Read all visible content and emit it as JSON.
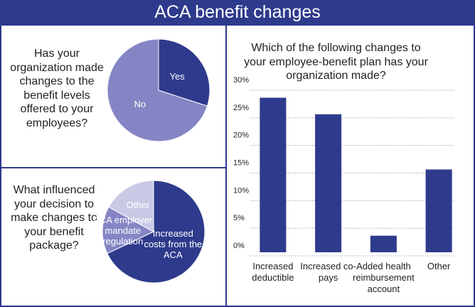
{
  "header": {
    "title": "ACA benefit changes"
  },
  "chart_data": [
    {
      "type": "pie",
      "title": "Has your organization made changes to the benefit levels offered to your employees?",
      "categories": [
        "Yes",
        "No"
      ],
      "values": [
        30,
        70
      ],
      "colors": [
        "#2e3a8c",
        "#8585c5"
      ]
    },
    {
      "type": "pie",
      "title": "What influenced your decision to make changes to your benefit package?",
      "categories": [
        "Increased costs from the ACA",
        "ACA employer mandate regulation",
        "Other"
      ],
      "values": [
        68,
        15,
        17
      ],
      "colors": [
        "#2e3a8c",
        "#8585c5",
        "#c9c9e5"
      ]
    },
    {
      "type": "bar",
      "title": "Which of the following changes to your employee-benefit plan has your organization made?",
      "categories": [
        "Increased deductible",
        "Increased co-pays",
        "Added health reimbursement account",
        "Other"
      ],
      "values": [
        28,
        25,
        3,
        15
      ],
      "color": "#2e3a8c",
      "ylim": [
        0,
        30
      ],
      "yticks": [
        {
          "value": 0,
          "label": "0%"
        },
        {
          "value": 5,
          "label": "5%"
        },
        {
          "value": 10,
          "label": "10%"
        },
        {
          "value": 15,
          "label": "15%"
        },
        {
          "value": 20,
          "label": "20%"
        },
        {
          "value": 25,
          "label": "25%"
        },
        {
          "value": 30,
          "label": "30%"
        }
      ],
      "grid": true
    }
  ]
}
